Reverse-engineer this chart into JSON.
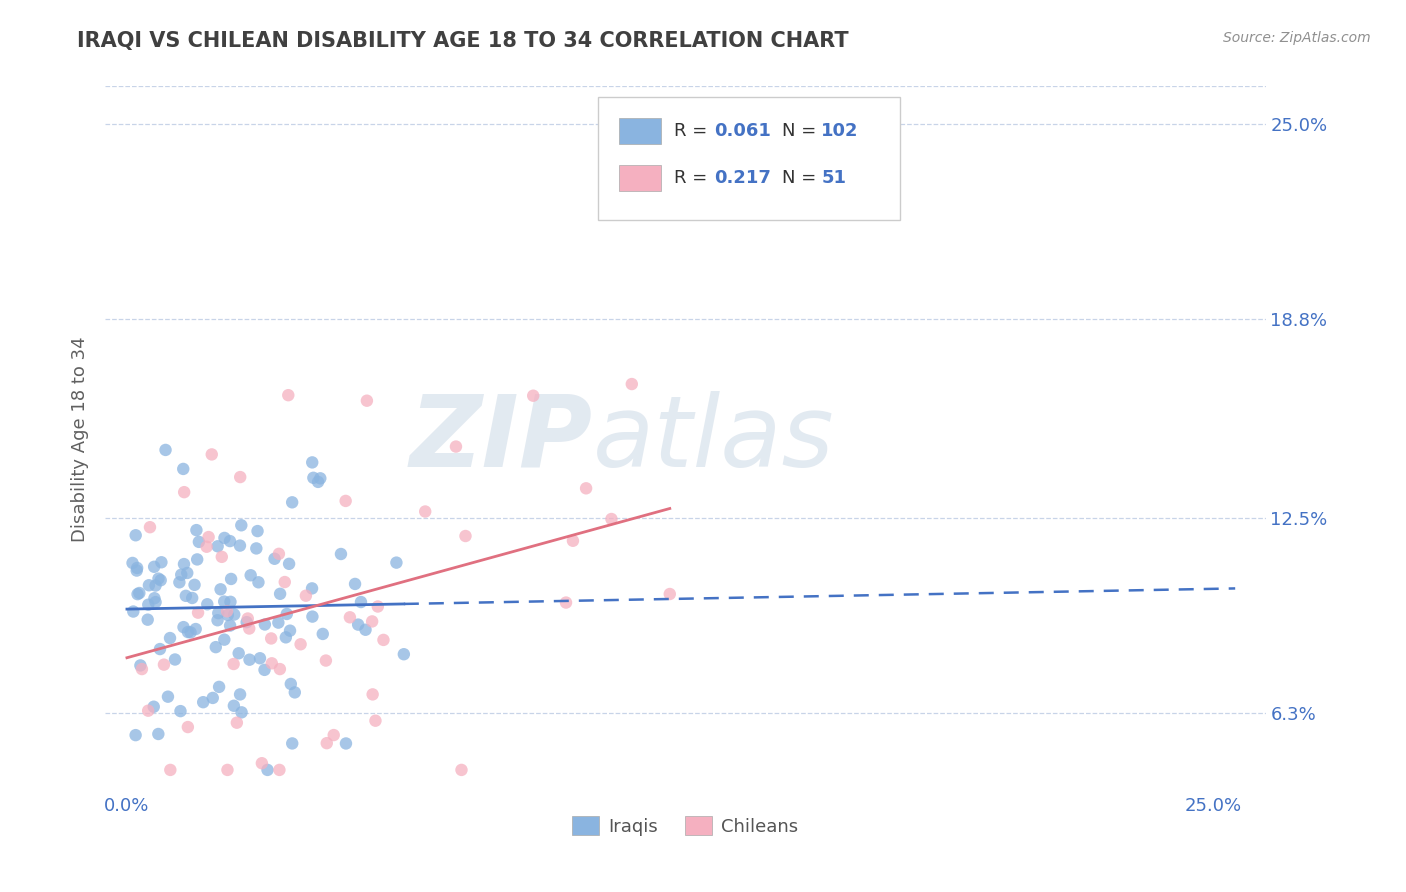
{
  "title": "IRAQI VS CHILEAN DISABILITY AGE 18 TO 34 CORRELATION CHART",
  "source": "Source: ZipAtlas.com",
  "ylabel": "Disability Age 18 to 34",
  "x_ticks": [
    0.0,
    0.25
  ],
  "x_tick_labels": [
    "0.0%",
    "25.0%"
  ],
  "y_ticks": [
    0.063,
    0.125,
    0.188,
    0.25
  ],
  "y_tick_labels": [
    "6.3%",
    "12.5%",
    "18.8%",
    "25.0%"
  ],
  "xlim": [
    -0.005,
    0.262
  ],
  "ylim": [
    0.038,
    0.262
  ],
  "iraqi_R": 0.061,
  "iraqi_N": 102,
  "chilean_R": 0.217,
  "chilean_N": 51,
  "iraqi_color": "#8ab4e0",
  "chilean_color": "#f5b0c0",
  "iraqi_line_color": "#4472C4",
  "chilean_line_color": "#e07080",
  "grid_color": "#c8d4e8",
  "legend_x_labels": [
    "Iraqis",
    "Chileans"
  ],
  "watermark_color": "#d0dce8",
  "background_color": "#ffffff",
  "title_color": "#404040",
  "tick_color": "#4472C4",
  "ylabel_color": "#606060",
  "source_color": "#909090"
}
